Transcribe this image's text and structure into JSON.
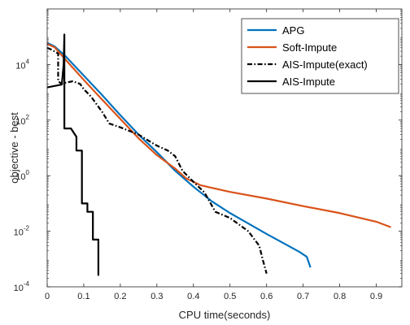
{
  "chart_data": {
    "type": "line",
    "title": "",
    "xlabel": "CPU time(seconds)",
    "ylabel": "objective - best",
    "xlim": [
      0,
      0.97
    ],
    "ylim": [
      0.0001,
      1000000
    ],
    "yscale": "log",
    "xticks": [
      0,
      0.1,
      0.2,
      0.3,
      0.4,
      0.5,
      0.6,
      0.7,
      0.8,
      0.9
    ],
    "xtick_labels": [
      "0",
      "0.1",
      "0.2",
      "0.3",
      "0.4",
      "0.5",
      "0.6",
      "0.7",
      "0.8",
      "0.9"
    ],
    "yticks": [
      {
        "value": 0.0001,
        "base": "10",
        "exp": "-4"
      },
      {
        "value": 0.01,
        "base": "10",
        "exp": "-2"
      },
      {
        "value": 1,
        "base": "10",
        "exp": "0"
      },
      {
        "value": 100,
        "base": "10",
        "exp": "2"
      },
      {
        "value": 10000,
        "base": "10",
        "exp": "4"
      }
    ],
    "grid": false,
    "legend_position": "top-right",
    "series": [
      {
        "name": "APG",
        "color": "#0072BD",
        "dash": "solid",
        "x": [
          0,
          0.02,
          0.05,
          0.1,
          0.15,
          0.2,
          0.25,
          0.3,
          0.35,
          0.4,
          0.45,
          0.5,
          0.55,
          0.6,
          0.65,
          0.69,
          0.71,
          0.72
        ],
        "y": [
          60000,
          45000,
          20000,
          4000,
          800,
          150,
          30,
          7,
          1.5,
          0.4,
          0.12,
          0.045,
          0.019,
          0.008,
          0.0035,
          0.0018,
          0.0012,
          0.0005
        ]
      },
      {
        "name": "Soft-Impute",
        "color": "#D95319",
        "dash": "solid",
        "x": [
          0,
          0.02,
          0.05,
          0.1,
          0.15,
          0.2,
          0.25,
          0.3,
          0.35,
          0.38,
          0.42,
          0.5,
          0.6,
          0.7,
          0.8,
          0.9,
          0.94
        ],
        "y": [
          55000,
          42000,
          15000,
          2800,
          550,
          110,
          22,
          5.5,
          1.8,
          0.8,
          0.45,
          0.26,
          0.15,
          0.08,
          0.045,
          0.022,
          0.014
        ]
      },
      {
        "name": "AIS-Impute(exact)",
        "color": "#000000",
        "dash": "dashdot",
        "x": [
          0,
          0.01,
          0.03,
          0.03,
          0.04,
          0.05,
          0.07,
          0.09,
          0.1,
          0.12,
          0.15,
          0.17,
          0.2,
          0.25,
          0.3,
          0.33,
          0.35,
          0.37,
          0.4,
          0.43,
          0.46,
          0.5,
          0.55,
          0.58,
          0.59,
          0.6
        ],
        "y": [
          40000,
          35000,
          25000,
          2500,
          2000,
          2200,
          2500,
          2000,
          1300,
          700,
          200,
          75,
          55,
          30,
          12,
          8,
          5,
          1.5,
          0.6,
          0.25,
          0.05,
          0.03,
          0.01,
          0.003,
          0.0009,
          0.0003
        ]
      },
      {
        "name": "AIS-Impute",
        "color": "#000000",
        "dash": "solid",
        "x": [
          0,
          0.04,
          0.045,
          0.047,
          0.047,
          0.065,
          0.08,
          0.08,
          0.095,
          0.095,
          0.11,
          0.11,
          0.125,
          0.125,
          0.14,
          0.14
        ],
        "y": [
          1500,
          1900,
          10000,
          120000,
          50,
          50,
          25,
          8,
          8,
          0.1,
          0.1,
          0.05,
          0.05,
          0.005,
          0.005,
          0.00025
        ]
      }
    ]
  }
}
